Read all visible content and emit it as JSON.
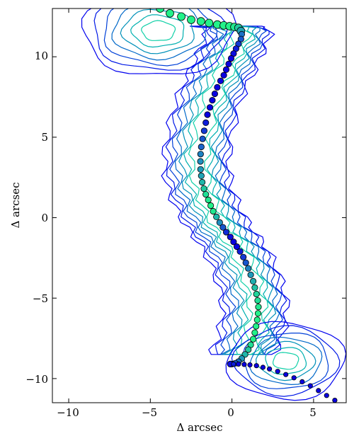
{
  "chart_data": {
    "type": "scatter",
    "title": "",
    "xlabel": "Δ arcsec",
    "ylabel": "Δ arcsec",
    "xlim": [
      -11,
      7
    ],
    "ylim": [
      -11.5,
      13
    ],
    "xticks": [
      -10,
      -5,
      0,
      5
    ],
    "yticks": [
      -10,
      -5,
      0,
      5,
      10
    ],
    "xtick_labels": [
      "−10",
      "−5",
      "0",
      "5"
    ],
    "ytick_labels": [
      "−10",
      "−5",
      "0",
      "5",
      "10"
    ],
    "grid": false,
    "legend": "none",
    "marker_color_scale": {
      "low": "#0a00e0",
      "mid": "#1f8fbf",
      "high": "#22f28a"
    },
    "contour_levels": [
      {
        "color": "#0000ee"
      },
      {
        "color": "#0018e6"
      },
      {
        "color": "#0040d8"
      },
      {
        "color": "#0068c8"
      },
      {
        "color": "#0090b8"
      },
      {
        "color": "#00b0b0"
      },
      {
        "color": "#12d0a8"
      }
    ],
    "series": [
      {
        "x": [
          -4.4,
          -3.8,
          -3.1,
          -2.5,
          -1.9,
          -1.4,
          -0.9,
          -0.5,
          -0.15,
          0.15,
          0.4,
          0.55,
          0.6,
          0.55,
          0.4,
          0.25,
          0.1,
          -0.05,
          -0.2,
          -0.35,
          -0.5,
          -0.7,
          -0.9,
          -1.05,
          -1.2,
          -1.35,
          -1.5,
          -1.6,
          -1.7,
          -1.8,
          -1.88,
          -1.92,
          -1.93,
          -1.92,
          -1.88,
          -1.82,
          -1.72,
          -1.6,
          -1.45,
          -1.3,
          -1.15,
          -0.95,
          -0.75,
          -0.55,
          -0.35,
          -0.1,
          0.1,
          0.3,
          0.5,
          0.7,
          0.85,
          1.0,
          1.15,
          1.3,
          1.4,
          1.5,
          1.58,
          1.62,
          1.6,
          1.55,
          1.48,
          1.4,
          1.3,
          1.15,
          1.0,
          0.8,
          0.6,
          0.4,
          0.2,
          0.0,
          -0.1,
          -0.1
        ],
        "y": [
          13.0,
          12.7,
          12.5,
          12.3,
          12.2,
          12.1,
          12.0,
          11.95,
          11.9,
          11.85,
          11.8,
          11.6,
          11.4,
          11.1,
          10.8,
          10.5,
          10.2,
          9.9,
          9.55,
          9.2,
          8.85,
          8.5,
          8.1,
          7.7,
          7.3,
          6.85,
          6.4,
          5.9,
          5.4,
          4.9,
          4.4,
          3.95,
          3.5,
          3.0,
          2.6,
          2.2,
          1.8,
          1.45,
          1.1,
          0.75,
          0.4,
          0.05,
          -0.3,
          -0.6,
          -0.9,
          -1.2,
          -1.5,
          -1.8,
          -2.1,
          -2.45,
          -2.8,
          -3.15,
          -3.55,
          -3.95,
          -4.35,
          -4.75,
          -5.15,
          -5.55,
          -5.95,
          -6.35,
          -6.75,
          -7.15,
          -7.55,
          -7.9,
          -8.2,
          -8.5,
          -8.75,
          -8.95,
          -9.05,
          -9.1,
          -9.1,
          -9.1
        ],
        "c": [
          1.0,
          1.0,
          1.0,
          1.0,
          1.0,
          1.0,
          1.0,
          1.0,
          1.0,
          0.95,
          0.8,
          0.6,
          0.4,
          0.3,
          0.2,
          0.1,
          0.05,
          0.0,
          0.0,
          0.0,
          0.0,
          0.0,
          0.0,
          0.0,
          0.0,
          0.0,
          0.0,
          0.1,
          0.2,
          0.3,
          0.35,
          0.45,
          0.5,
          0.55,
          0.6,
          0.7,
          0.8,
          0.9,
          0.95,
          1.0,
          0.95,
          0.7,
          0.5,
          0.3,
          0.15,
          0.05,
          0.0,
          0.0,
          0.1,
          0.2,
          0.3,
          0.45,
          0.55,
          0.65,
          0.75,
          0.85,
          0.9,
          0.95,
          1.0,
          1.0,
          1.0,
          1.0,
          1.0,
          0.9,
          0.8,
          0.7,
          0.55,
          0.4,
          0.3,
          0.2,
          0.1,
          0.05
        ]
      },
      {
        "x": [
          0.1,
          0.4,
          0.75,
          1.1,
          1.5,
          1.9,
          2.3,
          2.8,
          3.3,
          3.8,
          4.3,
          4.8,
          5.3,
          5.8,
          6.3
        ],
        "y": [
          -9.1,
          -9.1,
          -9.12,
          -9.15,
          -9.2,
          -9.3,
          -9.4,
          -9.55,
          -9.75,
          -9.95,
          -10.2,
          -10.45,
          -10.75,
          -11.05,
          -11.35
        ],
        "c": [
          0.1,
          0.0,
          0.0,
          0.0,
          0.0,
          0.0,
          0.0,
          0.0,
          0.0,
          0.0,
          0.0,
          0.0,
          0.0,
          0.0,
          0.0
        ]
      }
    ]
  }
}
